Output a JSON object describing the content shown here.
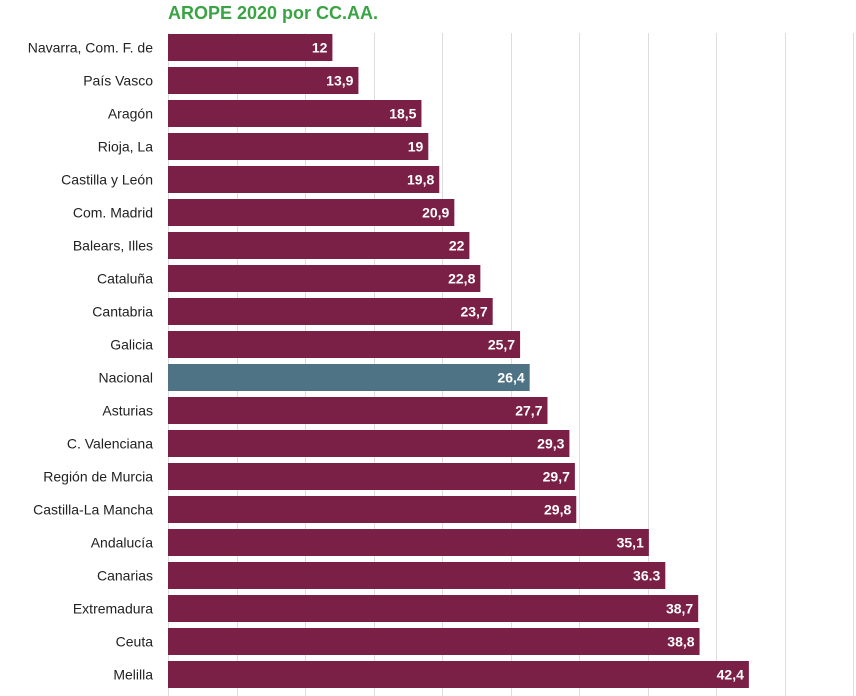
{
  "chart_data": {
    "type": "bar",
    "orientation": "horizontal",
    "title": "AROPE 2020 por CC.AA.",
    "xlabel": "",
    "ylabel": "",
    "xlim": [
      0,
      50
    ],
    "grid": true,
    "categories": [
      "Navarra, Com. F. de",
      "País Vasco",
      "Aragón",
      "Rioja, La",
      "Castilla y León",
      "Com. Madrid",
      "Balears, Illes",
      "Cataluña",
      "Cantabria",
      "Galicia",
      "Nacional",
      "Asturias",
      "C. Valenciana",
      "Región de Murcia",
      "Castilla-La Mancha",
      "Andalucía",
      "Canarias",
      "Extremadura",
      "Ceuta",
      "Melilla"
    ],
    "values": [
      12,
      13.9,
      18.5,
      19,
      19.8,
      20.9,
      22,
      22.8,
      23.7,
      25.7,
      26.4,
      27.7,
      29.3,
      29.7,
      29.8,
      35.1,
      36.3,
      38.7,
      38.8,
      42.4
    ],
    "value_labels": [
      "12",
      "13,9",
      "18,5",
      "19",
      "19,8",
      "20,9",
      "22",
      "22,8",
      "23,7",
      "25,7",
      "26,4",
      "27,7",
      "29,3",
      "29,7",
      "29,8",
      "35,1",
      "36.3",
      "38,7",
      "38,8",
      "42,4"
    ],
    "highlight": "Nacional",
    "colors": {
      "bar": "#7a1f45",
      "highlight": "#4e7384",
      "title": "#3aa344",
      "grid": "#dddddd"
    }
  }
}
